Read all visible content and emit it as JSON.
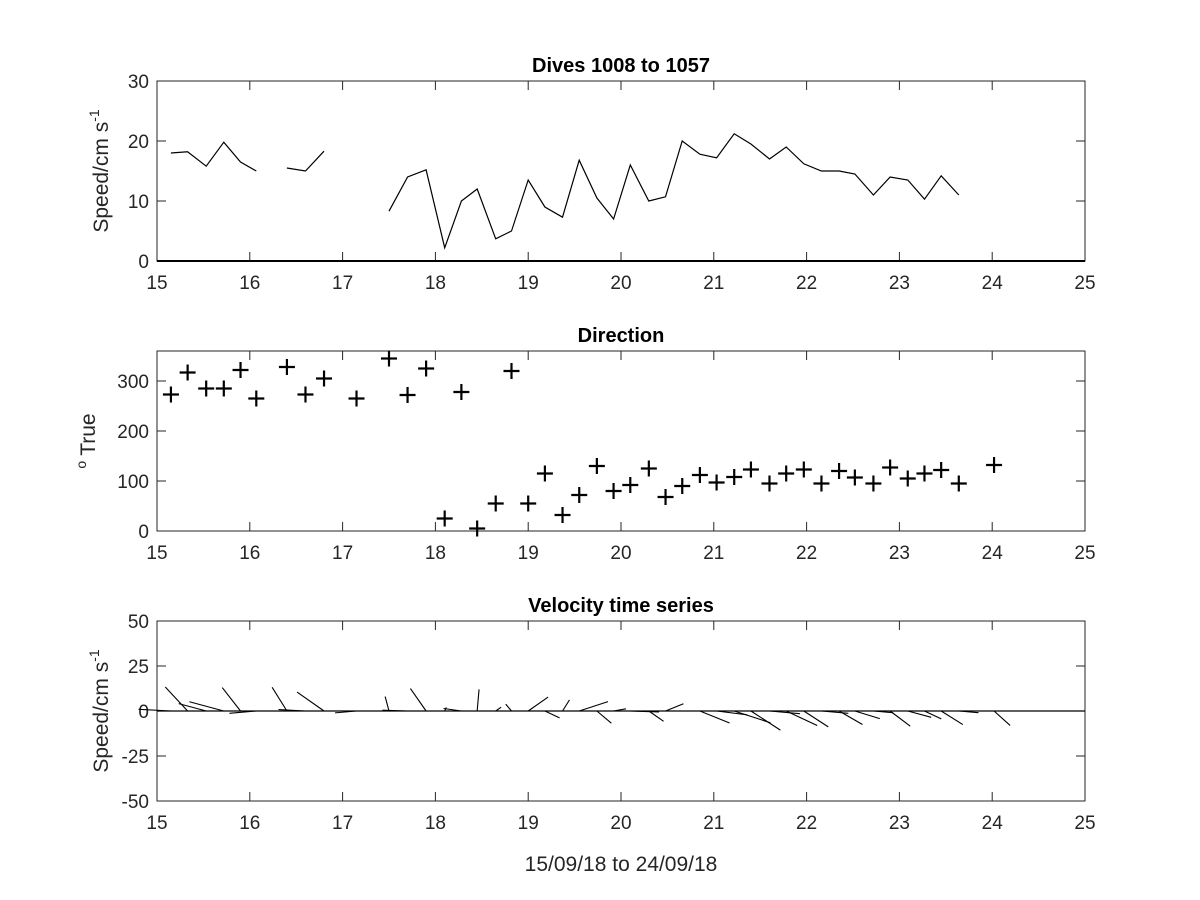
{
  "chart_data": [
    {
      "type": "line",
      "title": "Dives 1008 to 1057",
      "xlabel": "",
      "ylabel": "Speed/cm s",
      "ylabel_superscript": "-1",
      "xlim": [
        15,
        25
      ],
      "ylim": [
        0,
        30
      ],
      "xticks": [
        "15",
        "16",
        "17",
        "18",
        "19",
        "20",
        "21",
        "22",
        "23",
        "24",
        "25"
      ],
      "yticks": [
        "0",
        "10",
        "20",
        "30"
      ],
      "grid": false,
      "series": [
        {
          "x": [
            15.15,
            15.33,
            15.53,
            15.72,
            15.9,
            16.07,
            null,
            16.4,
            16.6,
            16.8,
            null,
            17.5,
            17.7,
            17.9,
            18.1,
            18.28,
            18.45,
            18.65,
            18.82,
            19.0,
            19.18,
            19.37,
            19.55,
            19.74,
            19.92,
            20.1,
            20.3,
            20.48,
            20.66,
            20.85,
            21.03,
            21.22,
            21.4,
            21.6,
            21.78,
            21.97,
            22.16,
            22.35,
            22.52,
            22.72,
            22.9,
            23.09,
            23.27,
            23.45,
            23.64
          ],
          "y": [
            18,
            18.2,
            15.8,
            19.8,
            16.5,
            15,
            null,
            15.5,
            15,
            18.3,
            null,
            8.3,
            14,
            15.2,
            2.2,
            10,
            12,
            3.7,
            5,
            13.5,
            9,
            7.3,
            16.8,
            10.5,
            7,
            16,
            10,
            10.7,
            20,
            17.8,
            17.2,
            21.2,
            19.5,
            17,
            19,
            16.2,
            15,
            15,
            14.5,
            11,
            14,
            13.5,
            10.3,
            14.2,
            11
          ]
        }
      ]
    },
    {
      "type": "scatter",
      "title": "Direction",
      "xlabel": "",
      "ylabel": "True",
      "ylabel_prefix": "o",
      "xlim": [
        15,
        25
      ],
      "ylim": [
        0,
        360
      ],
      "xticks": [
        "15",
        "16",
        "17",
        "18",
        "19",
        "20",
        "21",
        "22",
        "23",
        "24",
        "25"
      ],
      "yticks": [
        "0",
        "100",
        "200",
        "300"
      ],
      "grid": false,
      "marker": "+",
      "series": [
        {
          "x": [
            15.15,
            15.33,
            15.53,
            15.72,
            15.9,
            16.07,
            16.4,
            16.6,
            16.8,
            17.15,
            17.5,
            17.7,
            17.9,
            18.1,
            18.28,
            18.45,
            18.65,
            18.82,
            19.0,
            19.18,
            19.37,
            19.55,
            19.74,
            19.92,
            20.1,
            20.3,
            20.48,
            20.66,
            20.85,
            21.03,
            21.22,
            21.4,
            21.6,
            21.78,
            21.97,
            22.16,
            22.35,
            22.52,
            22.72,
            22.9,
            23.09,
            23.27,
            23.45,
            23.64,
            24.02
          ],
          "y": [
            273,
            317,
            285,
            285,
            322,
            265,
            328,
            273,
            305,
            265,
            345,
            272,
            325,
            25,
            278,
            5,
            55,
            320,
            55,
            115,
            32,
            72,
            130,
            80,
            92,
            125,
            68,
            90,
            112,
            97,
            108,
            123,
            95,
            115,
            123,
            95,
            120,
            107,
            95,
            127,
            105,
            115,
            122,
            95,
            132
          ]
        }
      ]
    },
    {
      "type": "quiver",
      "title": "Velocity time series",
      "xlabel": "15/09/18 to 24/09/18",
      "ylabel": "Speed/cm s",
      "ylabel_superscript": "-1",
      "xlim": [
        15,
        25
      ],
      "ylim": [
        -50,
        50
      ],
      "xticks": [
        "15",
        "16",
        "17",
        "18",
        "19",
        "20",
        "21",
        "22",
        "23",
        "24",
        "25"
      ],
      "yticks": [
        "-50",
        "-25",
        "0",
        "25",
        "50"
      ],
      "grid": false,
      "speed_source": "Dives 1008 to 1057",
      "direction_source": "Direction"
    }
  ]
}
